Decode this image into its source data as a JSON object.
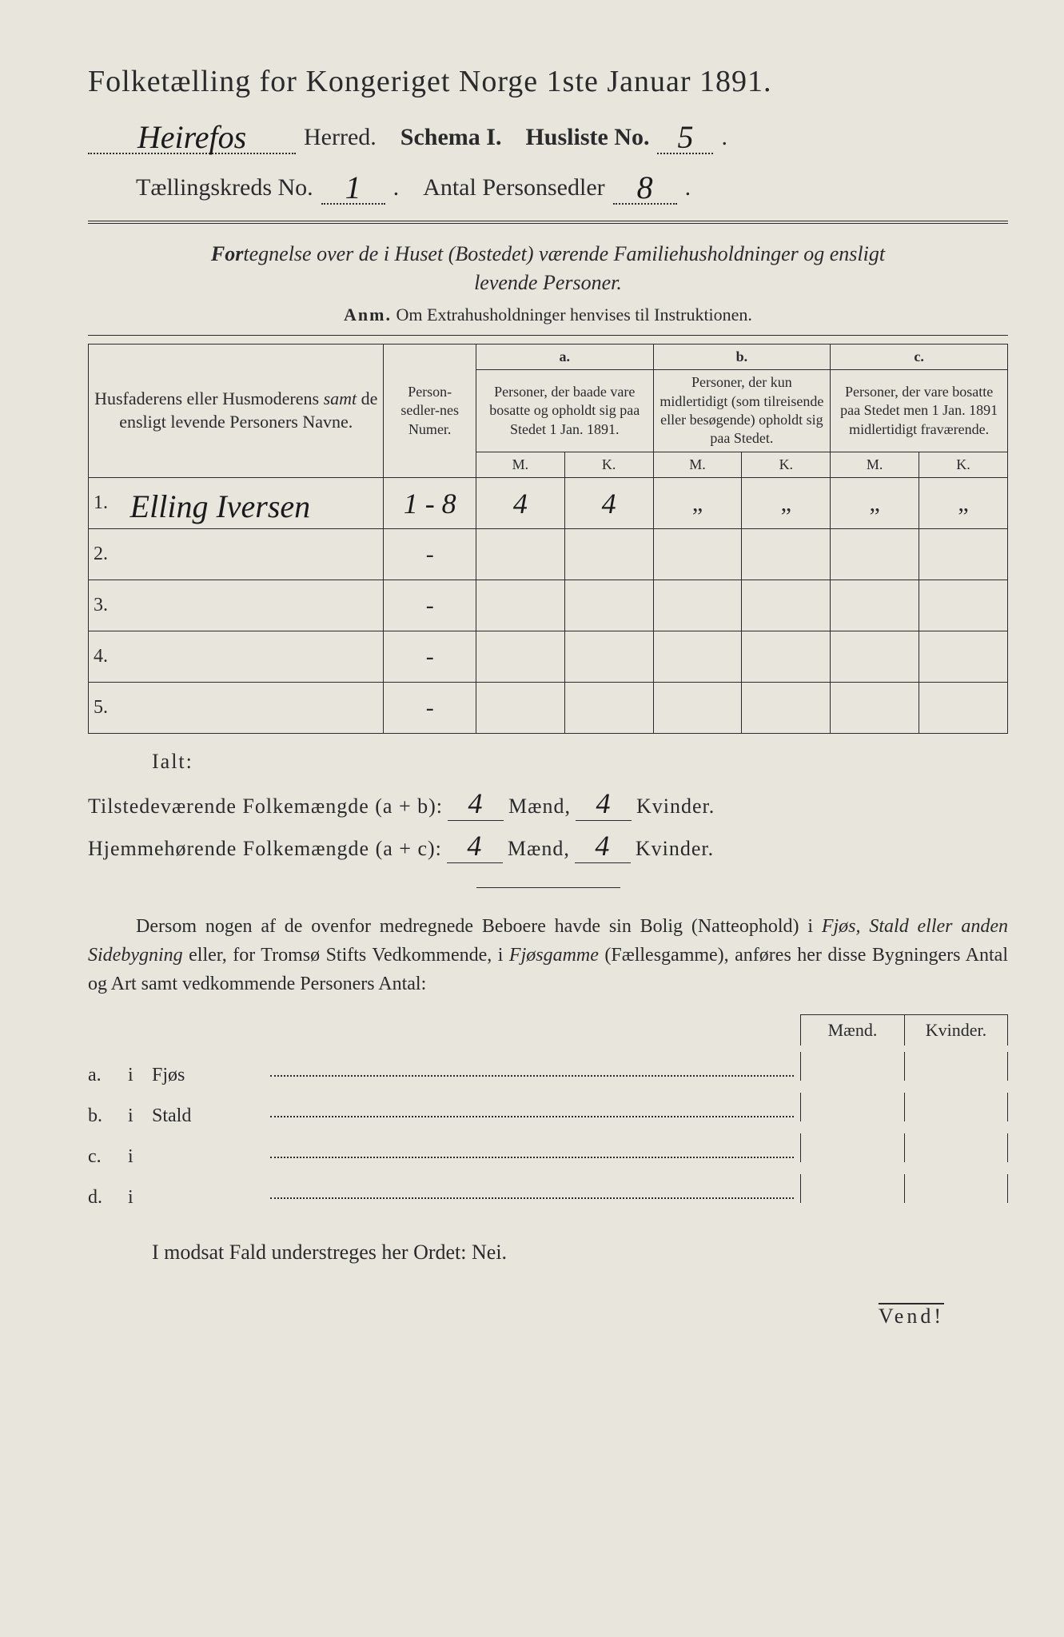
{
  "title": "Folketælling for Kongeriget Norge 1ste Januar 1891.",
  "header": {
    "herred_value": "Heirefos",
    "herred_label": "Herred.",
    "schema_label": "Schema I.",
    "husliste_label": "Husliste No.",
    "husliste_value": "5",
    "kreds_label": "Tællingskreds No.",
    "kreds_value": "1",
    "personsedler_label": "Antal Personsedler",
    "personsedler_value": "8"
  },
  "subtitle": "Fortegnelse over de i Huset (Bostedet) værende Familiehusholdninger og ensligt levende Personer.",
  "anm_label": "Anm.",
  "anm_text": "Om Extrahusholdninger henvises til Instruktionen.",
  "table": {
    "col1": "Husfaderens eller Husmoderens samt de ensligt levende Personers Navne.",
    "col2": "Person-sedler-nes Numer.",
    "col_a_letter": "a.",
    "col_a": "Personer, der baade vare bosatte og opholdt sig paa Stedet 1 Jan. 1891.",
    "col_b_letter": "b.",
    "col_b": "Personer, der kun midlertidigt (som tilreisende eller besøgende) opholdt sig paa Stedet.",
    "col_c_letter": "c.",
    "col_c": "Personer, der vare bosatte paa Stedet men 1 Jan. 1891 midlertidigt fraværende.",
    "m": "M.",
    "k": "K.",
    "rows": [
      {
        "num": "1.",
        "name": "Elling Iversen",
        "pn": "1 - 8",
        "am": "4",
        "ak": "4",
        "bm": "„",
        "bk": "„",
        "cm": "„",
        "ck": "„"
      },
      {
        "num": "2.",
        "name": "",
        "pn": "-",
        "am": "",
        "ak": "",
        "bm": "",
        "bk": "",
        "cm": "",
        "ck": ""
      },
      {
        "num": "3.",
        "name": "",
        "pn": "-",
        "am": "",
        "ak": "",
        "bm": "",
        "bk": "",
        "cm": "",
        "ck": ""
      },
      {
        "num": "4.",
        "name": "",
        "pn": "-",
        "am": "",
        "ak": "",
        "bm": "",
        "bk": "",
        "cm": "",
        "ck": ""
      },
      {
        "num": "5.",
        "name": "",
        "pn": "-",
        "am": "",
        "ak": "",
        "bm": "",
        "bk": "",
        "cm": "",
        "ck": ""
      }
    ]
  },
  "ialt": "Ialt:",
  "summary": {
    "line1_label": "Tilstedeværende Folkemængde (a + b):",
    "line1_m": "4",
    "line1_k": "4",
    "line2_label": "Hjemmehørende Folkemængde (a + c):",
    "line2_m": "4",
    "line2_k": "4",
    "maend": "Mænd,",
    "kvinder": "Kvinder."
  },
  "paragraph": "Dersom nogen af de ovenfor medregnede Beboere havde sin Bolig (Natteophold) i Fjøs, Stald eller anden Sidebygning eller, for Tromsø Stifts Vedkommende, i Fjøsgamme (Fællesgamme), anføres her disse Bygningers Antal og Art samt vedkommende Personers Antal:",
  "outbuildings": {
    "header_m": "Mænd.",
    "header_k": "Kvinder.",
    "rows": [
      {
        "letter": "a.",
        "i": "i",
        "name": "Fjøs"
      },
      {
        "letter": "b.",
        "i": "i",
        "name": "Stald"
      },
      {
        "letter": "c.",
        "i": "i",
        "name": ""
      },
      {
        "letter": "d.",
        "i": "i",
        "name": ""
      }
    ]
  },
  "nei_line": "I modsat Fald understreges her Ordet: Nei.",
  "vend": "Vend!",
  "colors": {
    "background": "#e8e6dc",
    "text": "#2a2a2a",
    "handwriting": "#1a1a1a"
  }
}
